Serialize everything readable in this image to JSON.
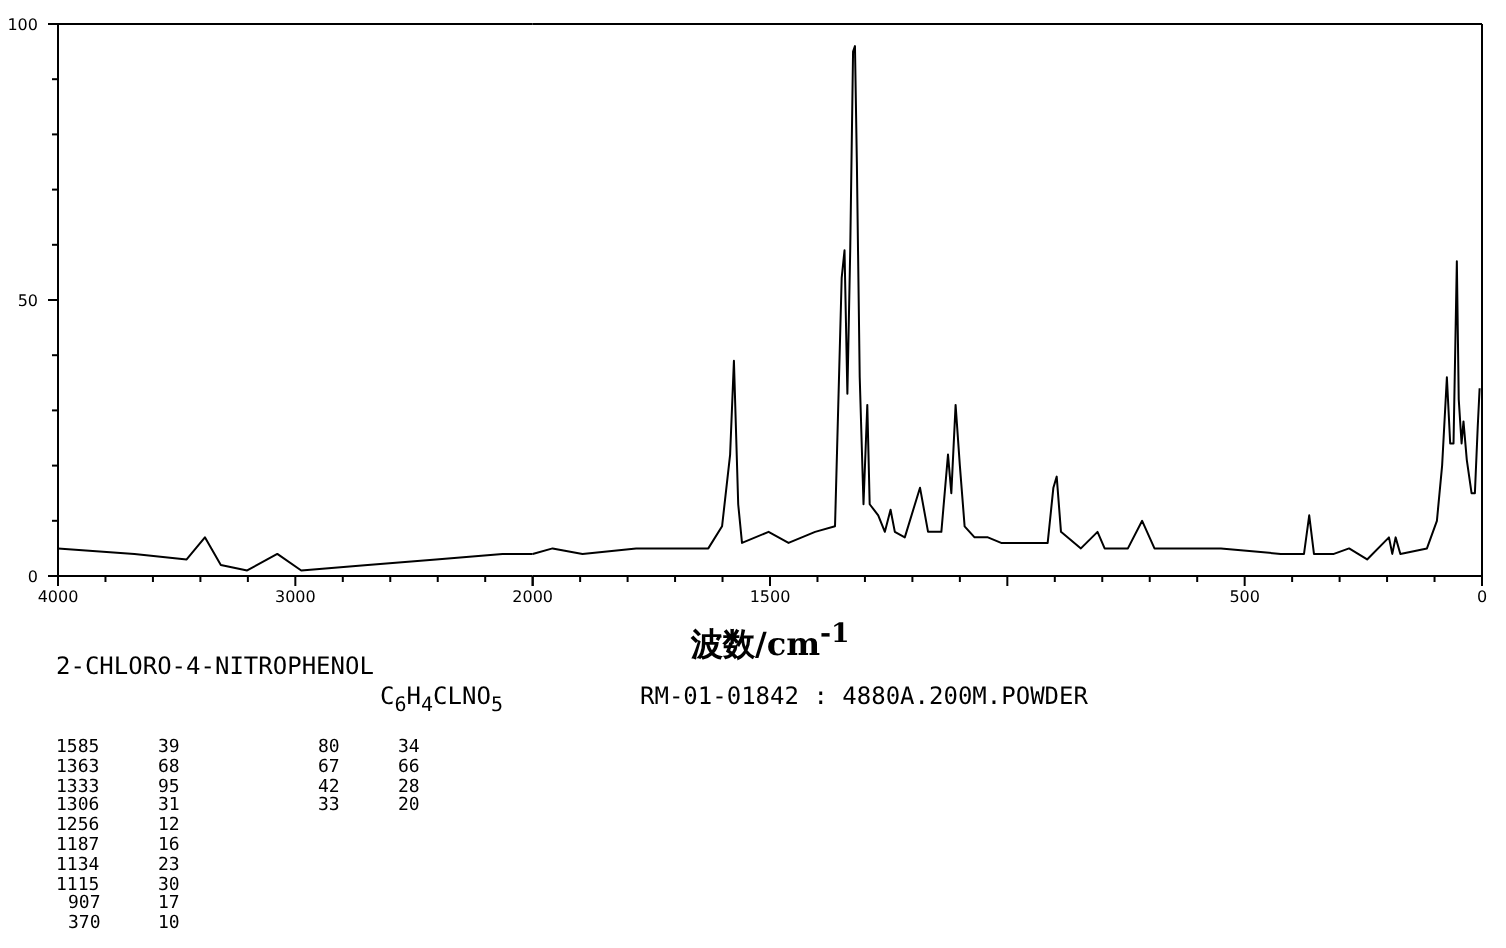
{
  "chart_data": [
    {
      "type": "line",
      "xlim": [
        4000,
        2000
      ],
      "ylim": [
        0,
        100
      ],
      "xticks": [
        4000,
        3000,
        2000
      ],
      "yticks": [
        0,
        50,
        100
      ],
      "annotations": [
        "2-CHLORO-4-NITROPHENOL",
        "C$_{6}$H$_{4}$CLNO$_{5}$",
        "RM-01-01842 : 4880A.200M.POWDER",
        "1585",
        "39",
        "1363",
        "68",
        "1333",
        "95",
        "1306",
        "31",
        "1256",
        "12",
        "1187",
        "16",
        "1134",
        "23",
        "1115",
        "30",
        "907",
        "17",
        "370",
        "10",
        "80",
        "34",
        "67",
        "66",
        "42",
        "28",
        "33",
        "20"
      ],
      "series": [
        {
          "color": "#000000",
          "x": [
            4000,
            3678,
            3458,
            3381,
            3314,
            3203,
            3076,
            2975,
            2695,
            2407,
            2127,
            2000
          ],
          "values": [
            5,
            4,
            3,
            7,
            2,
            1,
            4,
            1,
            2,
            3,
            4,
            4
          ]
        }
      ]
    },
    {
      "type": "line",
      "xlabel": "波数/cm$^{-1}$",
      "xlim": [
        2000,
        0
      ],
      "ylim": [
        0,
        100
      ],
      "xticks": [
        {
          "value": 2000,
          "label": null
        },
        1500,
        {
          "value": 1000,
          "label": null
        },
        500,
        0
      ],
      "tick_labels": "x",
      "series": [
        {
          "color": "#000000",
          "x": [
            2000,
            1958,
            1895,
            1782,
            1630,
            1601,
            1584,
            1576,
            1567,
            1559,
            1503,
            1461,
            1405,
            1363,
            1349,
            1343,
            1337,
            1331,
            1325,
            1321,
            1317,
            1311,
            1303,
            1295,
            1290,
            1272,
            1258,
            1246,
            1237,
            1216,
            1184,
            1167,
            1139,
            1125,
            1118,
            1109,
            1100,
            1090,
            1069,
            1041,
            1013,
            915,
            903,
            896,
            887,
            845,
            810,
            795,
            746,
            716,
            690,
            550,
            424,
            375,
            364,
            354,
            312,
            280,
            242,
            196,
            189,
            182,
            172,
            116,
            95,
            84,
            74,
            67,
            60,
            53,
            49,
            43,
            39,
            32,
            22,
            15,
            9,
            5
          ],
          "values": [
            4,
            5,
            4,
            5,
            5,
            9,
            22,
            39,
            13,
            6,
            8,
            6,
            8,
            9,
            54,
            59,
            33,
            59,
            95,
            96,
            75,
            36,
            13,
            31,
            13,
            11,
            8,
            12,
            8,
            7,
            16,
            8,
            8,
            22,
            15,
            31,
            20,
            9,
            7,
            7,
            6,
            6,
            16,
            18,
            8,
            5,
            8,
            5,
            5,
            10,
            5,
            5,
            4,
            4,
            11,
            4,
            4,
            5,
            3,
            7,
            4,
            7,
            4,
            5,
            10,
            20,
            36,
            24,
            24,
            57,
            32,
            24,
            28,
            21,
            15,
            15,
            27,
            34
          ]
        }
      ]
    }
  ]
}
